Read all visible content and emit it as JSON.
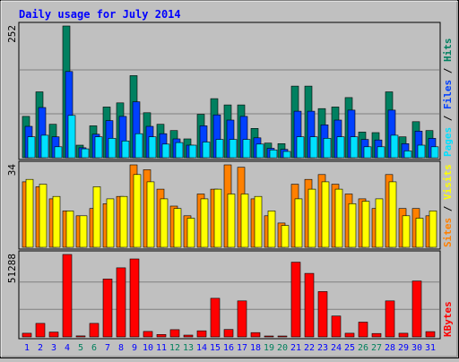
{
  "title": "Daily usage for July 2014",
  "right_labels": {
    "top": {
      "pages": "Pages",
      "sep1": " / ",
      "files": "Files",
      "sep2": " / ",
      "hits": "Hits"
    },
    "mid": {
      "sites": "Sites",
      "sep": " / ",
      "visits": "Visits"
    },
    "bottom": {
      "kbytes": "KBytes"
    }
  },
  "colors": {
    "background": "#c0c0c0",
    "plot_bg": "#c0c0c0",
    "title": "#0000ff",
    "hits": "#008060",
    "files": "#0040ff",
    "pages": "#00e0ff",
    "visits": "#ff8000",
    "sites": "#ffff00",
    "kbytes": "#ff0000",
    "weekend_label": "#00805c",
    "weekday_label": "#0000ff",
    "grid": "#808080"
  },
  "chart_data": [
    {
      "type": "bar",
      "name": "hits-files-pages",
      "ylabel_max": "252",
      "ylim": [
        0,
        252
      ],
      "categories": [
        "1",
        "2",
        "3",
        "4",
        "5",
        "6",
        "7",
        "8",
        "9",
        "10",
        "11",
        "12",
        "13",
        "14",
        "15",
        "16",
        "17",
        "18",
        "19",
        "20",
        "21",
        "22",
        "23",
        "24",
        "25",
        "26",
        "27",
        "28",
        "29",
        "30",
        "31"
      ],
      "weekend": [
        5,
        6,
        12,
        13,
        19,
        20,
        26,
        27
      ],
      "series": [
        {
          "name": "Hits",
          "values": [
            79,
            126,
            64,
            252,
            24,
            61,
            97,
            105,
            157,
            86,
            64,
            52,
            36,
            83,
            113,
            101,
            101,
            56,
            28,
            27,
            137,
            137,
            94,
            97,
            115,
            49,
            48,
            126,
            40,
            69,
            52
          ]
        },
        {
          "name": "Files",
          "values": [
            60,
            96,
            40,
            165,
            19,
            45,
            71,
            79,
            107,
            60,
            46,
            36,
            24,
            61,
            82,
            72,
            79,
            38,
            18,
            16,
            89,
            89,
            63,
            72,
            91,
            35,
            34,
            91,
            27,
            51,
            37
          ]
        },
        {
          "name": "Pages",
          "values": [
            40,
            43,
            21,
            81,
            17,
            40,
            37,
            32,
            46,
            40,
            26,
            29,
            24,
            30,
            35,
            35,
            35,
            26,
            15,
            12,
            40,
            40,
            37,
            40,
            40,
            21,
            21,
            43,
            13,
            24,
            21
          ]
        }
      ]
    },
    {
      "type": "bar",
      "name": "visits-sites",
      "ylabel_max": "34",
      "ylim": [
        0,
        34
      ],
      "categories": [
        "1",
        "2",
        "3",
        "4",
        "5",
        "6",
        "7",
        "8",
        "9",
        "10",
        "11",
        "12",
        "13",
        "14",
        "15",
        "16",
        "17",
        "18",
        "19",
        "20",
        "21",
        "22",
        "23",
        "24",
        "25",
        "26",
        "27",
        "28",
        "29",
        "30",
        "31"
      ],
      "weekend": [
        5,
        6,
        12,
        13,
        19,
        20,
        26,
        27
      ],
      "series": [
        {
          "name": "Visits",
          "values": [
            27,
            25,
            20,
            15,
            13,
            16,
            18,
            21,
            34,
            32,
            24,
            17,
            13,
            22,
            24,
            34,
            33,
            20,
            13,
            10,
            26,
            28,
            30,
            26,
            22,
            20,
            16,
            30,
            16,
            16,
            13
          ]
        },
        {
          "name": "Sites",
          "values": [
            28,
            26,
            21,
            15,
            13,
            25,
            20,
            21,
            30,
            27,
            20,
            16,
            12,
            20,
            24,
            22,
            22,
            21,
            15,
            9,
            20,
            24,
            27,
            24,
            18,
            19,
            20,
            27,
            13,
            12,
            15
          ]
        }
      ]
    },
    {
      "type": "bar",
      "name": "kbytes",
      "ylabel_max": "51288",
      "ylim": [
        0,
        51288
      ],
      "categories": [
        "1",
        "2",
        "3",
        "4",
        "5",
        "6",
        "7",
        "8",
        "9",
        "10",
        "11",
        "12",
        "13",
        "14",
        "15",
        "16",
        "17",
        "18",
        "19",
        "20",
        "21",
        "22",
        "23",
        "24",
        "25",
        "26",
        "27",
        "28",
        "29",
        "30",
        "31"
      ],
      "weekend": [
        5,
        6,
        12,
        13,
        19,
        20,
        26,
        27
      ],
      "series": [
        {
          "name": "KBytes",
          "values": [
            2300,
            8400,
            3000,
            51288,
            600,
            8400,
            36000,
            43000,
            48500,
            3400,
            1500,
            4500,
            1100,
            3800,
            24000,
            4600,
            22400,
            2700,
            500,
            300,
            46500,
            39500,
            28200,
            13000,
            2300,
            9200,
            2100,
            22400,
            2300,
            34800,
            3300
          ]
        }
      ]
    }
  ]
}
